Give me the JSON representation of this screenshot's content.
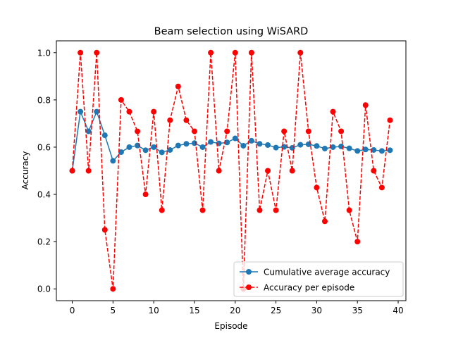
{
  "chart_data": {
    "type": "line",
    "title": "Beam selection using WiSARD",
    "xlabel": "Episode",
    "ylabel": "Accuracy",
    "xlim": [
      -1.95,
      40.95
    ],
    "ylim": [
      -0.05,
      1.05
    ],
    "xticks": [
      0,
      5,
      10,
      15,
      20,
      25,
      30,
      35,
      40
    ],
    "yticks": [
      0.0,
      0.2,
      0.4,
      0.6,
      0.8,
      1.0
    ],
    "x": [
      0,
      1,
      2,
      3,
      4,
      5,
      6,
      7,
      8,
      9,
      10,
      11,
      12,
      13,
      14,
      15,
      16,
      17,
      18,
      19,
      20,
      21,
      22,
      23,
      24,
      25,
      26,
      27,
      28,
      29,
      30,
      31,
      32,
      33,
      34,
      35,
      36,
      37,
      38,
      39
    ],
    "series": [
      {
        "name": "Cumulative average accuracy",
        "color": "#1f77b4",
        "style": "solid",
        "marker": "circle",
        "values": [
          0.5,
          0.75,
          0.667,
          0.75,
          0.65,
          0.542,
          0.579,
          0.6,
          0.607,
          0.587,
          0.6,
          0.578,
          0.588,
          0.607,
          0.614,
          0.617,
          0.6,
          0.622,
          0.616,
          0.62,
          0.637,
          0.606,
          0.627,
          0.614,
          0.609,
          0.598,
          0.601,
          0.597,
          0.61,
          0.612,
          0.605,
          0.594,
          0.6,
          0.603,
          0.595,
          0.584,
          0.59,
          0.588,
          0.584,
          0.587
        ]
      },
      {
        "name": "Accuracy per episode",
        "color": "#ff0000",
        "style": "dashed",
        "marker": "circle",
        "values": [
          0.5,
          1.0,
          0.5,
          1.0,
          0.25,
          0.0,
          0.8,
          0.75,
          0.667,
          0.4,
          0.75,
          0.333,
          0.714,
          0.857,
          0.714,
          0.667,
          0.333,
          1.0,
          0.5,
          0.667,
          1.0,
          0.0,
          1.0,
          0.333,
          0.5,
          0.333,
          0.667,
          0.5,
          1.0,
          0.667,
          0.429,
          0.286,
          0.75,
          0.667,
          0.333,
          0.2,
          0.778,
          0.5,
          0.429,
          0.714
        ]
      }
    ],
    "legend": {
      "position": "lower-right",
      "entries": [
        "Cumulative average accuracy",
        "Accuracy per episode"
      ]
    },
    "grid": false
  }
}
